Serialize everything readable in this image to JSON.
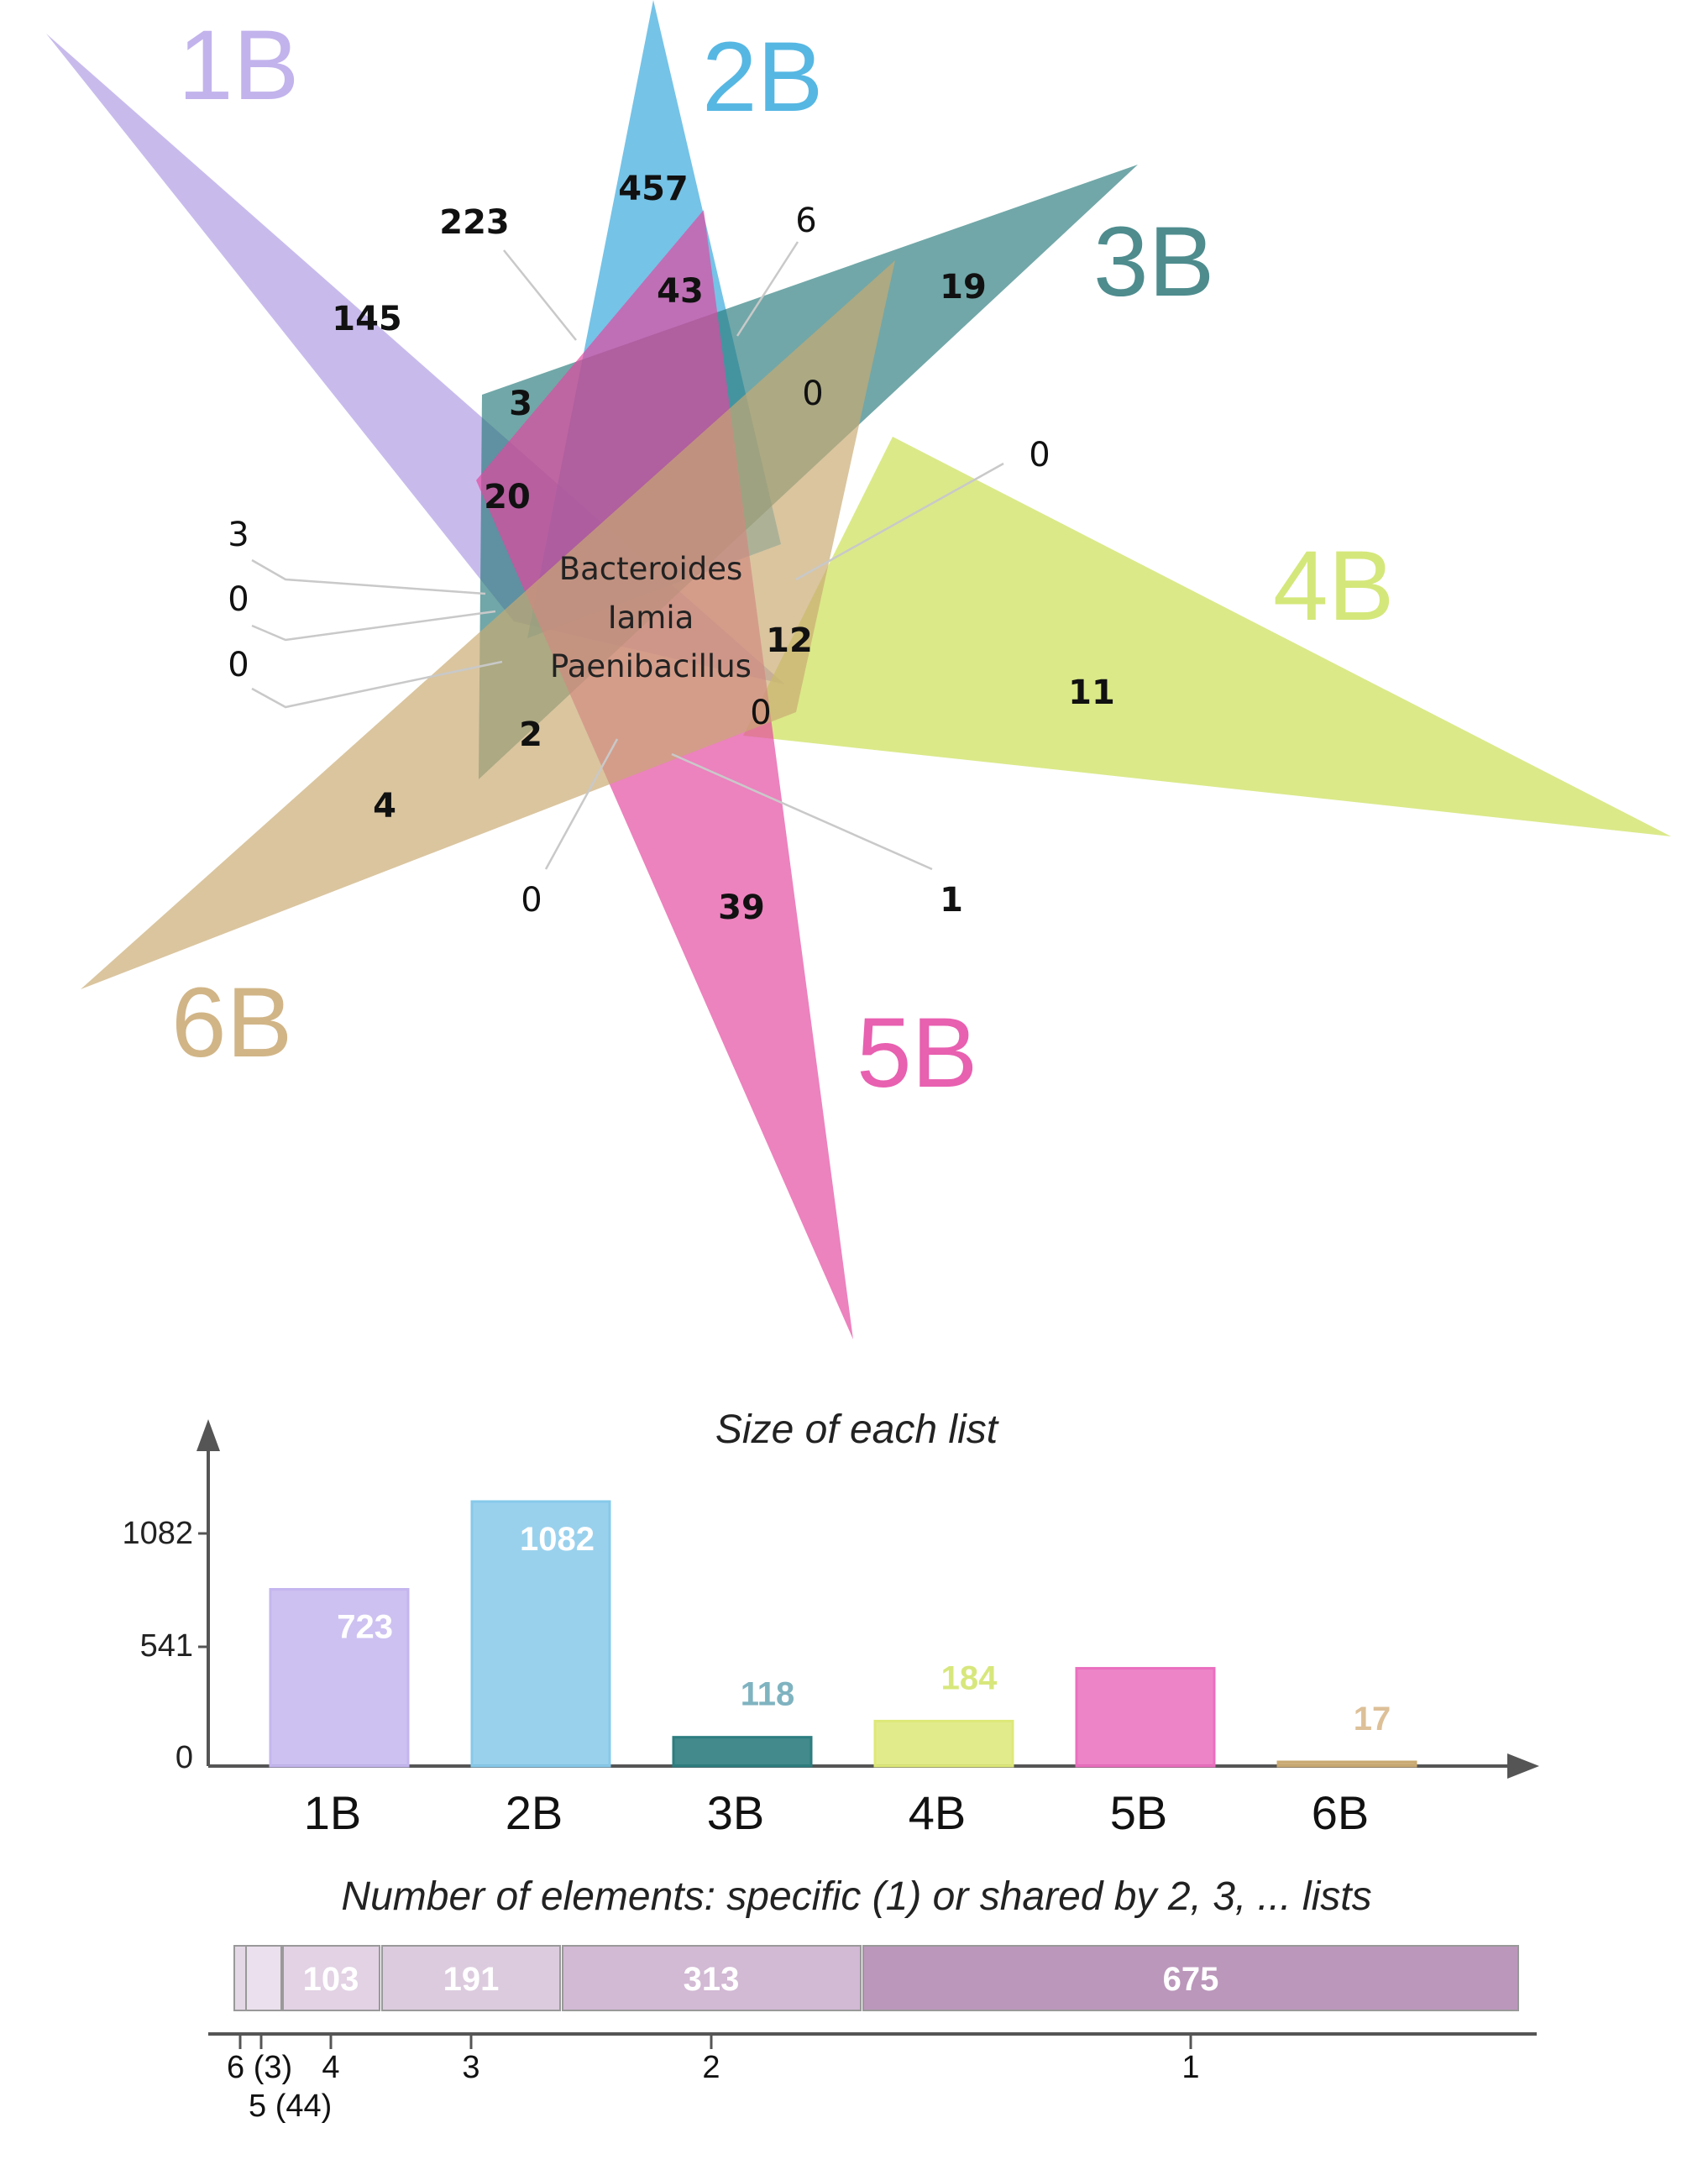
{
  "venn": {
    "sets": [
      {
        "name": "1B",
        "color": "#a792e0"
      },
      {
        "name": "2B",
        "color": "#3aaadd"
      },
      {
        "name": "3B",
        "color": "#2d7d7f"
      },
      {
        "name": "4B",
        "color": "#cde15b"
      },
      {
        "name": "5B",
        "color": "#e3479f"
      },
      {
        "name": "6B",
        "color": "#c9a972"
      }
    ],
    "region_counts": {
      "only_1B": "145",
      "only_2B": "457",
      "only_3B": "19",
      "only_4B": "11",
      "only_5B": "39",
      "only_6B": "4",
      "r_223": "223",
      "r_43": "43",
      "r_6": "6",
      "r_3a": "3",
      "r_0a": "0",
      "r_0b": "0",
      "r_20": "20",
      "r_3b": "3",
      "r_0c": "0",
      "r_0d": "0",
      "r_12": "12",
      "r_0e": "0",
      "r_2": "2",
      "r_0f": "0",
      "r_1": "1"
    },
    "center_elements": [
      "Bacteroides",
      "Iamia",
      "Paenibacillus"
    ]
  },
  "size_chart": {
    "title": "Size of each list",
    "y_ticks": [
      "1082",
      "541",
      "0"
    ]
  },
  "distribution": {
    "title": "Number of elements: specific (1) or shared by 2, 3, ... lists",
    "segments": [
      {
        "shared_by": 6,
        "value": 3,
        "color": "#e4d8e6"
      },
      {
        "shared_by": 5,
        "value": 44,
        "color": "#ebe0ed"
      },
      {
        "shared_by": 4,
        "value": 103,
        "color": "#e2d2e4"
      },
      {
        "shared_by": 3,
        "value": 191,
        "color": "#dccbde"
      },
      {
        "shared_by": 2,
        "value": 313,
        "color": "#d2b9d4"
      },
      {
        "shared_by": 1,
        "value": 675,
        "color": "#bb97bb"
      }
    ],
    "tick_labels": {
      "six": "6 (3)",
      "five": "5 (44)",
      "four": "4",
      "three": "3",
      "two": "2",
      "one": "1"
    },
    "segment_labels": {
      "four": "103",
      "three": "191",
      "two": "313",
      "one": "675"
    }
  },
  "chart_data": {
    "type": "bar",
    "title": "Size of each list",
    "categories": [
      "1B",
      "2B",
      "3B",
      "4B",
      "5B",
      "6B"
    ],
    "values": [
      723,
      1082,
      118,
      184,
      400,
      17
    ],
    "colors": [
      "#c4b6ee",
      "#87c9ea",
      "#2d7d7f",
      "#dde878",
      "#ea6fbe",
      "#c9a972"
    ],
    "ylim": [
      0,
      1082
    ],
    "xlabel": "",
    "ylabel": "",
    "grid": false
  }
}
